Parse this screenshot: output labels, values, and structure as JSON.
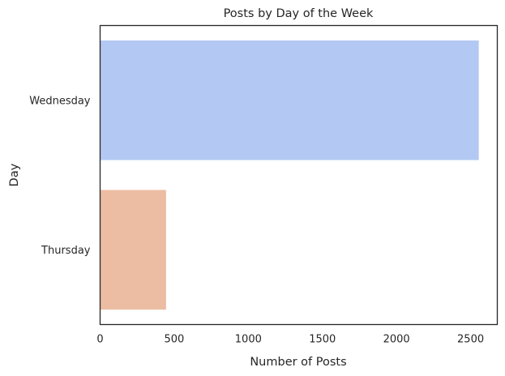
{
  "chart_data": {
    "type": "bar",
    "orientation": "horizontal",
    "title": "Posts by Day of the Week",
    "xlabel": "Number of Posts",
    "ylabel": "Day",
    "categories": [
      "Wednesday",
      "Thursday"
    ],
    "values": [
      2555,
      445
    ],
    "colors": [
      "#b3c9f3",
      "#ecbda3"
    ],
    "xlim": [
      0,
      2680
    ],
    "xticks": [
      0,
      500,
      1000,
      1500,
      2000,
      2500
    ],
    "grid": false,
    "legend": "none"
  }
}
